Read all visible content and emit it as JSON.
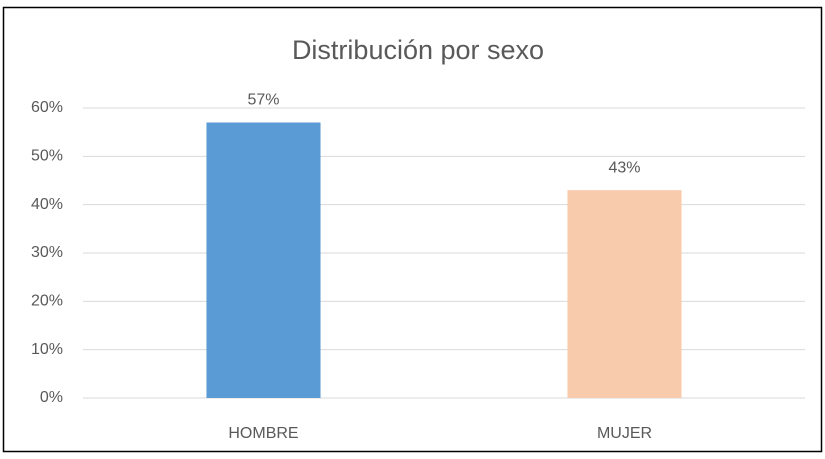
{
  "chart_data": {
    "type": "bar",
    "title": "Distribución por sexo",
    "categories": [
      "HOMBRE",
      "MUJER"
    ],
    "values": [
      57,
      43
    ],
    "value_labels": [
      "57%",
      "43%"
    ],
    "colors": [
      "#5b9bd5",
      "#f8cbad"
    ],
    "ylim": [
      0,
      60
    ],
    "yticks": [
      {
        "value": 0,
        "label": "0%"
      },
      {
        "value": 10,
        "label": "10%"
      },
      {
        "value": 20,
        "label": "20%"
      },
      {
        "value": 30,
        "label": "30%"
      },
      {
        "value": 40,
        "label": "40%"
      },
      {
        "value": 50,
        "label": "50%"
      },
      {
        "value": 60,
        "label": "60%"
      }
    ],
    "grid": true
  }
}
